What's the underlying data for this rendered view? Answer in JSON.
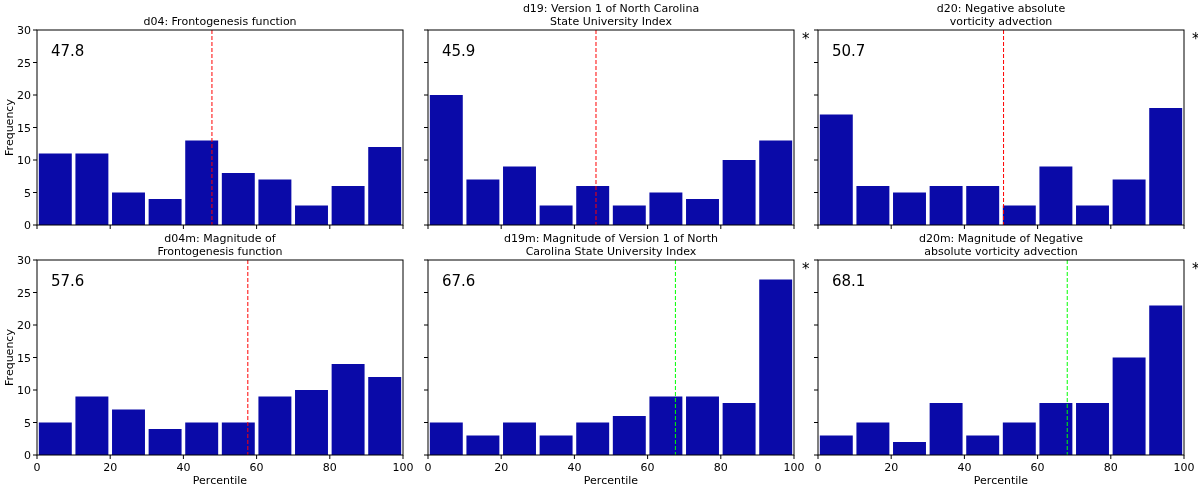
{
  "chart_data": [
    {
      "type": "histogram",
      "title": "d04: Frontogenesis function",
      "ylabel": "Frequency",
      "bins": [
        0,
        10,
        20,
        30,
        40,
        50,
        60,
        70,
        80,
        90,
        100
      ],
      "values": [
        11,
        11,
        5,
        4,
        13,
        8,
        7,
        3,
        6,
        12
      ],
      "color": "#0a0aa8",
      "xlim": [
        0,
        100
      ],
      "xticks": [
        0,
        20,
        40,
        60,
        80,
        100
      ],
      "ylim": [
        0,
        30
      ],
      "yticks": [
        0,
        5,
        10,
        15,
        20,
        25,
        30
      ],
      "tick_labels": "y",
      "ref_lines": [
        {
          "axis": "x",
          "value": 47.8,
          "color": "#ff0000",
          "line_style": "dashed"
        }
      ],
      "annotations": [
        "47.8"
      ]
    },
    {
      "type": "histogram",
      "title": "d19: Version 1 of North Carolina\nState University Index",
      "bins": [
        0,
        10,
        20,
        30,
        40,
        50,
        60,
        70,
        80,
        90,
        100
      ],
      "values": [
        20,
        7,
        9,
        3,
        6,
        3,
        5,
        4,
        10,
        13
      ],
      "color": "#0a0aa8",
      "xlim": [
        0,
        100
      ],
      "xticks": [
        0,
        20,
        40,
        60,
        80,
        100
      ],
      "ylim": [
        0,
        30
      ],
      "yticks": [
        0,
        5,
        10,
        15,
        20,
        25,
        30
      ],
      "tick_labels": false,
      "ref_lines": [
        {
          "axis": "x",
          "value": 45.9,
          "color": "#ff0000",
          "line_style": "dashed"
        }
      ],
      "annotations": [
        "45.9",
        "*"
      ]
    },
    {
      "type": "histogram",
      "title": "d20: Negative absolute\nvorticity advection",
      "bins": [
        0,
        10,
        20,
        30,
        40,
        50,
        60,
        70,
        80,
        90,
        100
      ],
      "values": [
        17,
        6,
        5,
        6,
        6,
        3,
        9,
        3,
        7,
        18
      ],
      "color": "#0a0aa8",
      "xlim": [
        0,
        100
      ],
      "xticks": [
        0,
        20,
        40,
        60,
        80,
        100
      ],
      "ylim": [
        0,
        30
      ],
      "yticks": [
        0,
        5,
        10,
        15,
        20,
        25,
        30
      ],
      "tick_labels": false,
      "ref_lines": [
        {
          "axis": "x",
          "value": 50.7,
          "color": "#ff0000",
          "line_style": "dashed"
        }
      ],
      "annotations": [
        "50.7",
        "*"
      ]
    },
    {
      "type": "histogram",
      "title": "d04m: Magnitude of\nFrontogenesis function",
      "xlabel": "Percentile",
      "ylabel": "Frequency",
      "bins": [
        0,
        10,
        20,
        30,
        40,
        50,
        60,
        70,
        80,
        90,
        100
      ],
      "values": [
        5,
        9,
        7,
        4,
        5,
        5,
        9,
        10,
        14,
        12
      ],
      "color": "#0a0aa8",
      "xlim": [
        0,
        100
      ],
      "xticks": [
        0,
        20,
        40,
        60,
        80,
        100
      ],
      "ylim": [
        0,
        30
      ],
      "yticks": [
        0,
        5,
        10,
        15,
        20,
        25,
        30
      ],
      "ref_lines": [
        {
          "axis": "x",
          "value": 57.6,
          "color": "#ff0000",
          "line_style": "dashed"
        }
      ],
      "annotations": [
        "57.6"
      ]
    },
    {
      "type": "histogram",
      "title": "d19m: Magnitude of Version 1 of North\nCarolina State University Index",
      "xlabel": "Percentile",
      "bins": [
        0,
        10,
        20,
        30,
        40,
        50,
        60,
        70,
        80,
        90,
        100
      ],
      "values": [
        5,
        3,
        5,
        3,
        5,
        6,
        9,
        9,
        8,
        27
      ],
      "color": "#0a0aa8",
      "xlim": [
        0,
        100
      ],
      "xticks": [
        0,
        20,
        40,
        60,
        80,
        100
      ],
      "ylim": [
        0,
        30
      ],
      "yticks": [
        0,
        5,
        10,
        15,
        20,
        25,
        30
      ],
      "tick_labels": "x",
      "ref_lines": [
        {
          "axis": "x",
          "value": 67.6,
          "color": "#00ff00",
          "line_style": "dashed"
        }
      ],
      "annotations": [
        "67.6",
        "*"
      ]
    },
    {
      "type": "histogram",
      "title": "d20m: Magnitude of Negative\nabsolute vorticity advection",
      "xlabel": "Percentile",
      "bins": [
        0,
        10,
        20,
        30,
        40,
        50,
        60,
        70,
        80,
        90,
        100
      ],
      "values": [
        3,
        5,
        2,
        8,
        3,
        5,
        8,
        8,
        15,
        23
      ],
      "color": "#0a0aa8",
      "xlim": [
        0,
        100
      ],
      "xticks": [
        0,
        20,
        40,
        60,
        80,
        100
      ],
      "ylim": [
        0,
        30
      ],
      "yticks": [
        0,
        5,
        10,
        15,
        20,
        25,
        30
      ],
      "tick_labels": "x",
      "ref_lines": [
        {
          "axis": "x",
          "value": 68.1,
          "color": "#00ff00",
          "line_style": "dashed"
        }
      ],
      "annotations": [
        "68.1",
        "*"
      ]
    }
  ]
}
